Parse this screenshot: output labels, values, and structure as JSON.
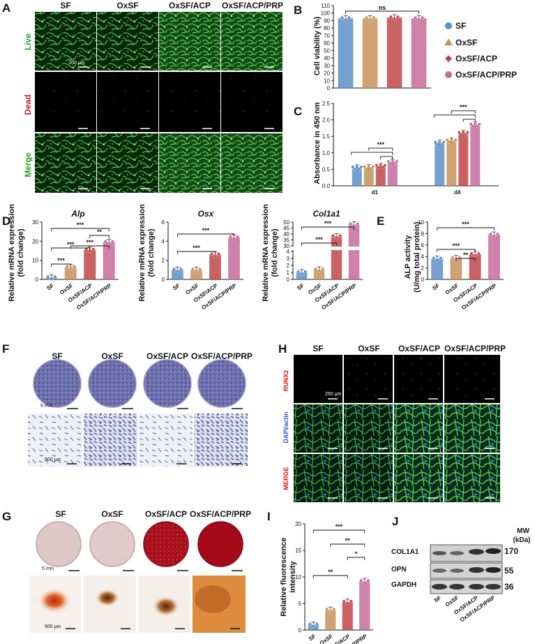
{
  "panels": {
    "a": "A",
    "b": "B",
    "c": "C",
    "d": "D",
    "e": "E",
    "f": "F",
    "g": "G",
    "h": "H",
    "i": "I",
    "j": "J"
  },
  "panelA": {
    "columns": [
      "SF",
      "OxSF",
      "OxSF/ACP",
      "OxSF/ACP/PRP"
    ],
    "rows": [
      "Live",
      "Dead",
      "Merge"
    ],
    "scale": "200 μm"
  },
  "legend": {
    "items": [
      {
        "label": "SF",
        "color": "#5b8fc5",
        "marker": "circle"
      },
      {
        "label": "OxSF",
        "color": "#c8915a",
        "marker": "triangle"
      },
      {
        "label": "OxSF/ACP",
        "color": "#c0474a",
        "marker": "diamond"
      },
      {
        "label": "OxSF/ACP/PRP",
        "color": "#c46b9c",
        "marker": "circle"
      }
    ]
  },
  "panelF": {
    "columns": [
      "SF",
      "OxSF",
      "OxSF/ACP",
      "OxSF/ACP/PRP"
    ],
    "scale_top": "5 mm",
    "scale_bottom": "500 μm"
  },
  "panelG": {
    "columns": [
      "SF",
      "OxSF",
      "OxSF/ACP",
      "OxSF/ACP/PRP"
    ],
    "scale_top": "5 mm",
    "scale_bottom": "500 μm"
  },
  "panelH": {
    "columns": [
      "SF",
      "OxSF",
      "OxSF/ACP",
      "OxSF/ACP/PRP"
    ],
    "rows": [
      "RUNX2",
      "DAPI/actin",
      "MERGE"
    ],
    "scale": "250 μm"
  },
  "panelJ": {
    "mw_header": "MW",
    "mw_unit": "(kDa)",
    "bands": [
      {
        "label": "COL1A1",
        "mw": "170"
      },
      {
        "label": "OPN",
        "mw": "55"
      },
      {
        "label": "GAPDH",
        "mw": "36"
      }
    ],
    "lanes": [
      "SF",
      "OxSF",
      "OxSF/ACP",
      "OxSF/ACP/PRP"
    ]
  },
  "chart_data": [
    {
      "id": "B",
      "type": "bar",
      "categories": [
        "SF",
        "OxSF",
        "OxSF/ACP",
        "OxSF/ACP/PRP"
      ],
      "values": [
        93,
        93,
        94,
        93
      ],
      "ylabel": "Cell viability (%)",
      "ylim": [
        0,
        110
      ],
      "yticks": [
        0,
        10,
        20,
        30,
        40,
        50,
        60,
        70,
        80,
        90,
        100,
        110
      ],
      "annotations": [
        {
          "text": "ns",
          "from": 0,
          "to": 3
        }
      ],
      "show_xticks": false
    },
    {
      "id": "C",
      "type": "bar",
      "categories": [
        "d1",
        "d4"
      ],
      "series": [
        {
          "name": "SF",
          "values": [
            0.55,
            1.3
          ]
        },
        {
          "name": "OxSF",
          "values": [
            0.56,
            1.37
          ]
        },
        {
          "name": "OxSF/ACP",
          "values": [
            0.6,
            1.6
          ]
        },
        {
          "name": "OxSF/ACP/PRP",
          "values": [
            0.72,
            1.85
          ]
        }
      ],
      "ylabel": "Absorbance in 450 nm",
      "ylim": [
        0,
        2.5
      ],
      "yticks": [
        0.0,
        0.5,
        1.0,
        1.5,
        2.0,
        2.5
      ],
      "annotations": [
        "***",
        "***"
      ]
    },
    {
      "id": "D-Alp",
      "type": "bar",
      "title": "Alp",
      "categories": [
        "SF",
        "OxSF",
        "OxSF/ACP",
        "OxSF/ACP/PRP"
      ],
      "values": [
        1.0,
        6.5,
        15.5,
        19.5
      ],
      "ylabel": "Relative mRNA expression (fold change)",
      "ylim": [
        0,
        30
      ],
      "yticks": [
        0,
        10,
        20,
        30
      ],
      "annotations": [
        "***",
        "***",
        "***",
        "***",
        "**"
      ]
    },
    {
      "id": "D-Osx",
      "type": "bar",
      "title": "Osx",
      "categories": [
        "SF",
        "OxSF",
        "OxSF/ACP",
        "OxSF/ACP/PRP"
      ],
      "values": [
        1.0,
        1.0,
        2.6,
        4.4
      ],
      "ylabel": "Relative mRNA expression (fold change)",
      "ylim": [
        0,
        6
      ],
      "yticks": [
        0,
        2,
        4,
        6
      ],
      "annotations": [
        "***",
        "***"
      ]
    },
    {
      "id": "D-Col1a1",
      "type": "bar",
      "title": "Col1a1",
      "categories": [
        "SF",
        "OxSF",
        "OxSF/ACP",
        "OxSF/ACP/PRP"
      ],
      "values": [
        1.0,
        1.4,
        38,
        48
      ],
      "ylabel": "Relative mRNA expression (fold change)",
      "ylim": [
        0,
        50
      ],
      "yticks": [
        0,
        1,
        2,
        3,
        4,
        30,
        35,
        40,
        45,
        50
      ],
      "broken_axis": true,
      "annotations": [
        "***",
        "***"
      ]
    },
    {
      "id": "E",
      "type": "bar",
      "categories": [
        "SF",
        "OxSF",
        "OxSF/ACP",
        "OxSF/ACP/PRP"
      ],
      "values": [
        3.6,
        3.7,
        4.4,
        7.8
      ],
      "ylabel": "ALP activity (U/mg total protein)",
      "ylim": [
        0,
        10
      ],
      "yticks": [
        0,
        2,
        4,
        6,
        8,
        10
      ],
      "annotations": [
        "***",
        "***",
        "**"
      ]
    },
    {
      "id": "I",
      "type": "bar",
      "categories": [
        "SF",
        "OxSF",
        "OxSF/ACP",
        "OxSF/ACP/PRP"
      ],
      "values": [
        1.0,
        3.8,
        5.3,
        9.2
      ],
      "ylabel": "Relative fluorescence intensity",
      "ylim": [
        0,
        20
      ],
      "yticks": [
        0,
        5,
        10,
        15,
        20
      ],
      "annotations": [
        "***",
        "**",
        "*",
        "**"
      ]
    }
  ]
}
